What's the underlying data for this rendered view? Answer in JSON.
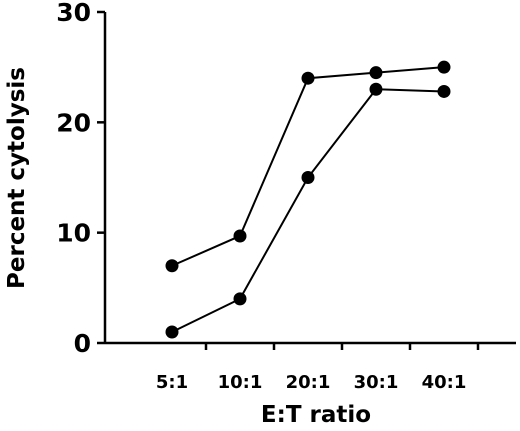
{
  "chart_data": {
    "type": "line",
    "categories": [
      "5:1",
      "10:1",
      "20:1",
      "30:1",
      "40:1"
    ],
    "series": [
      {
        "values": [
          7,
          9.7,
          24,
          24.5,
          25
        ]
      },
      {
        "values": [
          1,
          4,
          15,
          23,
          22.8
        ]
      }
    ],
    "xlabel": "E:T ratio",
    "ylabel": "Percent cytolysis",
    "ylim": [
      0,
      30
    ],
    "yticks": [
      "0",
      "10",
      "20",
      "30"
    ],
    "grid": false,
    "marker": "filled-circle",
    "colors": {
      "line": "#000000",
      "marker": "#000000"
    }
  }
}
